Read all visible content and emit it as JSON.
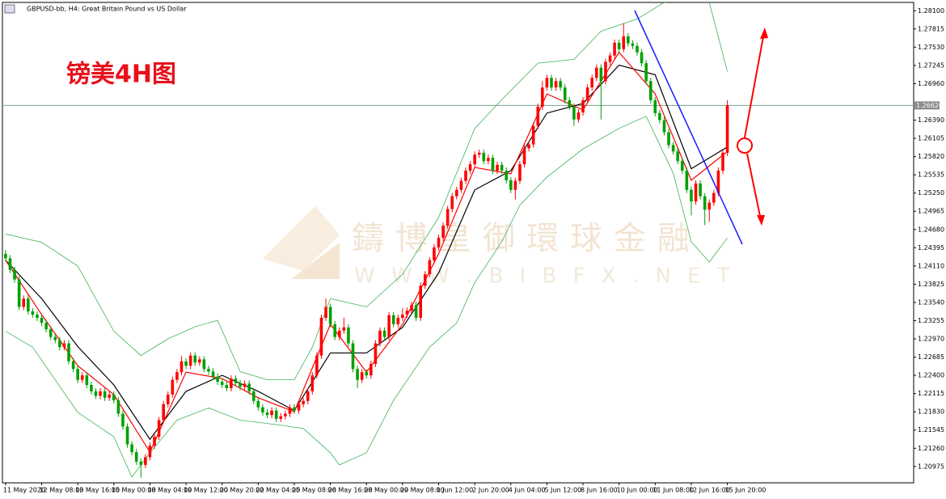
{
  "chart_data": {
    "type": "candlestick",
    "title": "GBPUSD-bb, H4:  Great Britain Pound vs US Dollar",
    "annotation": "镑美4H图",
    "watermark": [
      "鑄博皇御環球金融",
      "W W W . B I B F X . N E T"
    ],
    "up_color": "#ff0000",
    "down_color": "#00a000",
    "open": [
      1.243,
      1.2423,
      1.2405,
      1.239,
      1.2347,
      1.236,
      1.234,
      1.2335,
      1.233,
      1.2322,
      1.2312,
      1.23,
      1.2295,
      1.2284,
      1.229,
      1.2262,
      1.225,
      1.2233,
      1.224,
      1.2225,
      1.2215,
      1.2208,
      1.2215,
      1.2205,
      1.221,
      1.2201,
      1.218,
      1.216,
      1.2132,
      1.212,
      1.2105,
      1.21,
      1.2112,
      1.213,
      1.2144,
      1.217,
      1.2195,
      1.221,
      1.2233,
      1.2245,
      1.2262,
      1.2255,
      1.2271,
      1.226,
      1.2265,
      1.225,
      1.2246,
      1.2238,
      1.223,
      1.2225,
      1.222,
      1.2235,
      1.2228,
      1.2222,
      1.2227,
      1.2215,
      1.22,
      1.219,
      1.2182,
      1.2178,
      1.2185,
      1.2172,
      1.2176,
      1.218,
      1.219,
      1.2185,
      1.2195,
      1.22,
      1.2215,
      1.224,
      1.2271,
      1.233,
      1.2347,
      1.232,
      1.23,
      1.231,
      1.2315,
      1.229,
      1.225,
      1.2233,
      1.2245,
      1.224,
      1.2258,
      1.229,
      1.231,
      1.23,
      1.2334,
      1.232,
      1.233,
      1.2335,
      1.2341,
      1.235,
      1.233,
      1.238,
      1.2398,
      1.242,
      1.244,
      1.2455,
      1.2474,
      1.25,
      1.252,
      1.253,
      1.2544,
      1.256,
      1.257,
      1.2585,
      1.2588,
      1.2575,
      1.258,
      1.256,
      1.2569,
      1.256,
      1.2545,
      1.253,
      1.2544,
      1.257,
      1.2595,
      1.2601,
      1.263,
      1.266,
      1.269,
      1.2705,
      1.269,
      1.27,
      1.269,
      1.267,
      1.266,
      1.264,
      1.2651,
      1.267,
      1.269,
      1.2705,
      1.2721,
      1.27,
      1.273,
      1.274,
      1.276,
      1.275,
      1.277,
      1.2759,
      1.2755,
      1.2745,
      1.2728,
      1.27,
      1.267,
      1.265,
      1.2639,
      1.262,
      1.26,
      1.259,
      1.2575,
      1.256,
      1.253,
      1.2512,
      1.254,
      1.252,
      1.2499,
      1.251,
      1.2525,
      1.256,
      1.2588
    ],
    "high": [
      1.2436,
      1.2428,
      1.241,
      1.2395,
      1.2365,
      1.2365,
      1.2345,
      1.234,
      1.2335,
      1.2327,
      1.2317,
      1.2305,
      1.23,
      1.2295,
      1.2295,
      1.2267,
      1.2255,
      1.2245,
      1.2245,
      1.223,
      1.222,
      1.222,
      1.222,
      1.2215,
      1.2215,
      1.2206,
      1.2185,
      1.2165,
      1.2137,
      1.2125,
      1.211,
      1.2117,
      1.2135,
      1.2149,
      1.2175,
      1.22,
      1.2215,
      1.2238,
      1.225,
      1.227,
      1.2267,
      1.2276,
      1.2276,
      1.227,
      1.227,
      1.2255,
      1.2251,
      1.2243,
      1.2235,
      1.223,
      1.224,
      1.224,
      1.2233,
      1.2232,
      1.2232,
      1.222,
      1.2205,
      1.2195,
      1.2187,
      1.219,
      1.219,
      1.2181,
      1.2185,
      1.2195,
      1.2195,
      1.22,
      1.2205,
      1.222,
      1.2245,
      1.2276,
      1.2335,
      1.236,
      1.2352,
      1.2325,
      1.2315,
      1.233,
      1.232,
      1.2295,
      1.2255,
      1.225,
      1.225,
      1.2263,
      1.2295,
      1.2315,
      1.2315,
      1.2339,
      1.2339,
      1.2335,
      1.2345,
      1.2346,
      1.2355,
      1.2355,
      1.2385,
      1.2403,
      1.2425,
      1.2445,
      1.246,
      1.2479,
      1.2505,
      1.2525,
      1.2535,
      1.2549,
      1.2565,
      1.2575,
      1.259,
      1.2593,
      1.2593,
      1.2585,
      1.2585,
      1.2574,
      1.2574,
      1.2565,
      1.255,
      1.2549,
      1.2575,
      1.26,
      1.2606,
      1.2635,
      1.2665,
      1.27,
      1.271,
      1.271,
      1.2705,
      1.2705,
      1.2695,
      1.2675,
      1.2665,
      1.2656,
      1.2675,
      1.2695,
      1.271,
      1.2726,
      1.2726,
      1.2735,
      1.2745,
      1.2765,
      1.2765,
      1.279,
      1.2775,
      1.2764,
      1.276,
      1.275,
      1.2733,
      1.2705,
      1.2675,
      1.2655,
      1.2644,
      1.2625,
      1.2605,
      1.2595,
      1.258,
      1.2565,
      1.2535,
      1.2545,
      1.2545,
      1.2525,
      1.2515,
      1.253,
      1.2565,
      1.2593,
      1.267
    ],
    "low": [
      1.2418,
      1.24,
      1.2385,
      1.2342,
      1.2342,
      1.2335,
      1.233,
      1.2325,
      1.2317,
      1.2307,
      1.2295,
      1.229,
      1.2279,
      1.2279,
      1.2257,
      1.2245,
      1.2228,
      1.2228,
      1.222,
      1.221,
      1.2203,
      1.2203,
      1.22,
      1.22,
      1.2196,
      1.2175,
      1.2155,
      1.2127,
      1.2115,
      1.21,
      1.208,
      1.2095,
      1.2107,
      1.2125,
      1.2139,
      1.2165,
      1.219,
      1.2205,
      1.2228,
      1.224,
      1.225,
      1.225,
      1.2255,
      1.2255,
      1.2245,
      1.2241,
      1.2233,
      1.2225,
      1.222,
      1.2215,
      1.2215,
      1.2223,
      1.2217,
      1.2217,
      1.221,
      1.2195,
      1.2185,
      1.2177,
      1.2173,
      1.2173,
      1.2167,
      1.2167,
      1.2171,
      1.2175,
      1.218,
      1.218,
      1.219,
      1.2195,
      1.221,
      1.2235,
      1.2266,
      1.2325,
      1.2315,
      1.2295,
      1.2295,
      1.2305,
      1.2285,
      1.2245,
      1.222,
      1.2228,
      1.2235,
      1.2235,
      1.2253,
      1.2285,
      1.2295,
      1.2295,
      1.2315,
      1.2315,
      1.2325,
      1.233,
      1.2336,
      1.2325,
      1.2325,
      1.2375,
      1.2393,
      1.2415,
      1.2435,
      1.245,
      1.2469,
      1.2495,
      1.2515,
      1.2525,
      1.2539,
      1.2555,
      1.2565,
      1.258,
      1.257,
      1.257,
      1.2555,
      1.2555,
      1.2555,
      1.254,
      1.2525,
      1.2515,
      1.2539,
      1.2565,
      1.259,
      1.2596,
      1.2625,
      1.2655,
      1.2685,
      1.2685,
      1.2685,
      1.2685,
      1.2665,
      1.2655,
      1.263,
      1.2635,
      1.2646,
      1.2665,
      1.2685,
      1.27,
      1.264,
      1.2695,
      1.2725,
      1.2735,
      1.2745,
      1.2745,
      1.2754,
      1.275,
      1.274,
      1.2723,
      1.2695,
      1.2665,
      1.2645,
      1.2634,
      1.2615,
      1.2595,
      1.2585,
      1.257,
      1.2555,
      1.2525,
      1.249,
      1.2507,
      1.2515,
      1.2475,
      1.248,
      1.2505,
      1.252,
      1.2555,
      1.2583
    ],
    "close": [
      1.2423,
      1.2405,
      1.239,
      1.2347,
      1.236,
      1.234,
      1.2335,
      1.233,
      1.2322,
      1.2312,
      1.23,
      1.2295,
      1.2284,
      1.229,
      1.2262,
      1.225,
      1.2233,
      1.224,
      1.2225,
      1.2215,
      1.2208,
      1.2215,
      1.2205,
      1.221,
      1.2201,
      1.218,
      1.216,
      1.2132,
      1.212,
      1.2105,
      1.21,
      1.2112,
      1.213,
      1.2144,
      1.217,
      1.2195,
      1.221,
      1.2233,
      1.2245,
      1.2262,
      1.2255,
      1.2271,
      1.226,
      1.2265,
      1.225,
      1.2246,
      1.2238,
      1.223,
      1.2225,
      1.222,
      1.2235,
      1.2228,
      1.2222,
      1.2227,
      1.2215,
      1.22,
      1.219,
      1.2182,
      1.2178,
      1.2185,
      1.2172,
      1.2176,
      1.218,
      1.219,
      1.2185,
      1.2195,
      1.22,
      1.2215,
      1.224,
      1.2271,
      1.233,
      1.2347,
      1.232,
      1.23,
      1.231,
      1.2315,
      1.229,
      1.225,
      1.2233,
      1.2245,
      1.224,
      1.2258,
      1.229,
      1.231,
      1.23,
      1.2334,
      1.232,
      1.233,
      1.2335,
      1.2341,
      1.235,
      1.233,
      1.238,
      1.2398,
      1.242,
      1.244,
      1.2455,
      1.2474,
      1.25,
      1.252,
      1.253,
      1.2544,
      1.256,
      1.257,
      1.2585,
      1.2588,
      1.2575,
      1.258,
      1.256,
      1.2569,
      1.256,
      1.2545,
      1.253,
      1.2544,
      1.257,
      1.2595,
      1.2601,
      1.263,
      1.266,
      1.269,
      1.2705,
      1.269,
      1.27,
      1.269,
      1.267,
      1.266,
      1.264,
      1.2651,
      1.267,
      1.269,
      1.2705,
      1.2721,
      1.27,
      1.273,
      1.274,
      1.276,
      1.275,
      1.277,
      1.2759,
      1.2755,
      1.2745,
      1.2728,
      1.27,
      1.267,
      1.265,
      1.2639,
      1.262,
      1.26,
      1.259,
      1.2575,
      1.256,
      1.253,
      1.2512,
      1.254,
      1.252,
      1.2499,
      1.251,
      1.2525,
      1.256,
      1.2588,
      1.2662
    ],
    "series": [
      {
        "color": "#3cb45a",
        "x": [
          0,
          8,
          16,
          24,
          30,
          36,
          42,
          47,
          52,
          58,
          64,
          68,
          72,
          80,
          88,
          96,
          104,
          110,
          118,
          126,
          132,
          140,
          146,
          152,
          156,
          160
        ],
        "values": [
          1.2461,
          1.2448,
          1.2411,
          1.2309,
          1.2271,
          1.2297,
          1.2316,
          1.2326,
          1.2246,
          1.2233,
          1.2233,
          1.2284,
          1.236,
          1.2347,
          1.2398,
          1.2487,
          1.2626,
          1.2671,
          1.2728,
          1.2734,
          1.2778,
          1.2797,
          1.2823,
          1.2828,
          1.2823,
          1.2715
        ]
      },
      {
        "color": "#3cb45a",
        "x": [
          0,
          6,
          16,
          24,
          28,
          32,
          38,
          45,
          52,
          60,
          66,
          72,
          74,
          80,
          86,
          94,
          100,
          104,
          110,
          114,
          120,
          128,
          136,
          142,
          148,
          152,
          156,
          160
        ],
        "values": [
          1.2309,
          1.2284,
          1.2182,
          1.2144,
          1.2081,
          1.2119,
          1.217,
          1.2189,
          1.217,
          1.2163,
          1.2157,
          1.2119,
          1.21,
          1.2119,
          1.2201,
          1.2284,
          1.2322,
          1.2385,
          1.2449,
          1.2506,
          1.255,
          1.2594,
          1.2626,
          1.2645,
          1.2556,
          1.2449,
          1.2417,
          1.2455
        ]
      },
      {
        "color": "#000000",
        "x": [
          0,
          8,
          16,
          24,
          32,
          40,
          48,
          56,
          64,
          72,
          80,
          88,
          96,
          104,
          112,
          120,
          128,
          136,
          144,
          152,
          160
        ],
        "values": [
          1.242,
          1.236,
          1.2285,
          1.2225,
          1.214,
          1.2215,
          1.224,
          1.2215,
          1.2185,
          1.2275,
          1.2275,
          1.2315,
          1.24,
          1.253,
          1.256,
          1.265,
          1.2665,
          1.2725,
          1.271,
          1.2563,
          1.2597
        ]
      },
      {
        "color": "#ff0000",
        "x": [
          0,
          8,
          16,
          24,
          32,
          40,
          48,
          56,
          64,
          72,
          80,
          88,
          96,
          104,
          112,
          120,
          128,
          136,
          144,
          152,
          160
        ],
        "values": [
          1.242,
          1.2335,
          1.2255,
          1.221,
          1.212,
          1.2245,
          1.2235,
          1.2205,
          1.2183,
          1.232,
          1.2245,
          1.232,
          1.243,
          1.2565,
          1.2555,
          1.268,
          1.2655,
          1.2745,
          1.268,
          1.2545,
          1.259
        ]
      }
    ],
    "last_price": {
      "value": 1.2662,
      "label": "1.26620"
    },
    "xlim": [
      -0.7,
      201.3
    ],
    "xticks": [
      {
        "value": 0,
        "label": "11 May 2020"
      },
      {
        "value": 8,
        "label": "12 May 08:00"
      },
      {
        "value": 16,
        "label": "13 May 16:00"
      },
      {
        "value": 24,
        "label": "15 May 00:00"
      },
      {
        "value": 32,
        "label": "18 May 04:00"
      },
      {
        "value": 40,
        "label": "19 May 12:00"
      },
      {
        "value": 48,
        "label": "20 May 20:00"
      },
      {
        "value": 56,
        "label": "22 May 04:00"
      },
      {
        "value": 64,
        "label": "25 May 08:00"
      },
      {
        "value": 72,
        "label": "26 May 16:00"
      },
      {
        "value": 80,
        "label": "28 May 00:00"
      },
      {
        "value": 88,
        "label": "29 May 08:00"
      },
      {
        "value": 96,
        "label": "1 Jun 12:00"
      },
      {
        "value": 104,
        "label": "2 Jun 20:00"
      },
      {
        "value": 112,
        "label": "4 Jun 04:00"
      },
      {
        "value": 120,
        "label": "5 Jun 12:00"
      },
      {
        "value": 128,
        "label": "8 Jun 16:00"
      },
      {
        "value": 136,
        "label": "10 Jun 00:00"
      },
      {
        "value": 144,
        "label": "11 Jun 08:00"
      },
      {
        "value": 152,
        "label": "12 Jun 16:00"
      },
      {
        "value": 160,
        "label": "15 Jun 20:00"
      }
    ],
    "ylim": [
      1.2072,
      1.2823
    ],
    "yticks": [
      {
        "value": 1.281,
        "label": "1.28100"
      },
      {
        "value": 1.27815,
        "label": "1.27815"
      },
      {
        "value": 1.2753,
        "label": "1.27530"
      },
      {
        "value": 1.27245,
        "label": "1.27245"
      },
      {
        "value": 1.2696,
        "label": "1.26960"
      },
      {
        "value": 1.2639,
        "label": "1.26390"
      },
      {
        "value": 1.26105,
        "label": "1.26105"
      },
      {
        "value": 1.2582,
        "label": "1.25820"
      },
      {
        "value": 1.25535,
        "label": "1.25535"
      },
      {
        "value": 1.2525,
        "label": "1.25250"
      },
      {
        "value": 1.24965,
        "label": "1.24965"
      },
      {
        "value": 1.2468,
        "label": "1.24680"
      },
      {
        "value": 1.24395,
        "label": "1.24395"
      },
      {
        "value": 1.2411,
        "label": "1.24110"
      },
      {
        "value": 1.23825,
        "label": "1.23825"
      },
      {
        "value": 1.2354,
        "label": "1.23540"
      },
      {
        "value": 1.23255,
        "label": "1.23255"
      },
      {
        "value": 1.2297,
        "label": "1.22970"
      },
      {
        "value": 1.22685,
        "label": "1.22685"
      },
      {
        "value": 1.224,
        "label": "1.22400"
      },
      {
        "value": 1.22115,
        "label": "1.22115"
      },
      {
        "value": 1.2183,
        "label": "1.21830"
      },
      {
        "value": 1.21545,
        "label": "1.21545"
      },
      {
        "value": 1.2126,
        "label": "1.21260"
      },
      {
        "value": 1.20975,
        "label": "1.20975"
      }
    ]
  }
}
